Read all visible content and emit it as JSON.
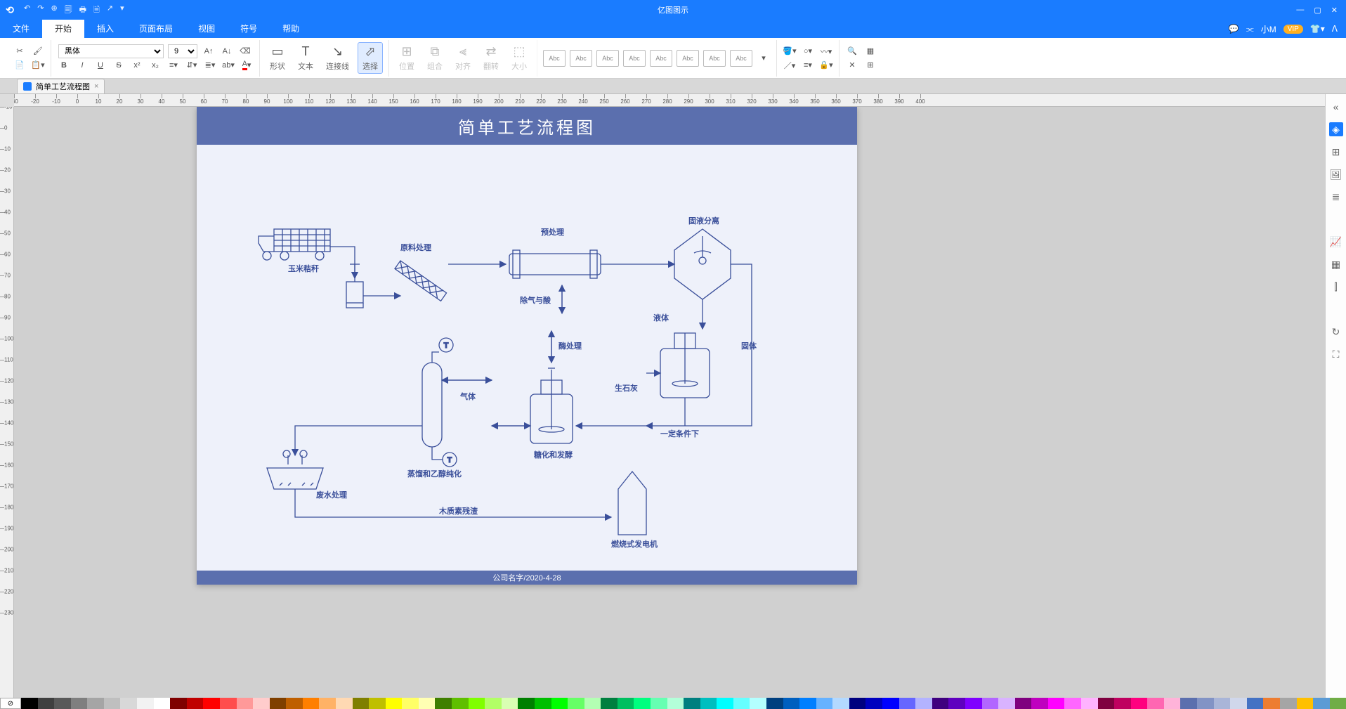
{
  "app": {
    "title": "亿图图示"
  },
  "qat": [
    "↶",
    "↷",
    "⊕",
    "🗐",
    "🖶",
    "🗎",
    "↗"
  ],
  "menu": {
    "tabs": [
      "文件",
      "开始",
      "插入",
      "页面布局",
      "视图",
      "符号",
      "帮助"
    ],
    "active": 1,
    "user": "小M",
    "vip": "VIP"
  },
  "ribbon": {
    "font_name": "黑体",
    "font_size": "9",
    "shape_label": "形状",
    "text_label": "文本",
    "connector_label": "连接线",
    "select_label": "选择",
    "position_label": "位置",
    "group_label": "组合",
    "align_label": "对齐",
    "flip_label": "翻转",
    "size_label": "大小",
    "style_swatches": [
      "Abc",
      "Abc",
      "Abc",
      "Abc",
      "Abc",
      "Abc",
      "Abc",
      "Abc"
    ]
  },
  "doctab": {
    "name": "简单工艺流程图",
    "close": "×"
  },
  "page": {
    "title": "简单工艺流程图",
    "footer": "公司名字/2020-4-28",
    "labels": {
      "corn": "玉米秸秆",
      "raw": "原料处理",
      "pretreat": "预处理",
      "solidliquid": "固液分离",
      "deacid": "除气与酸",
      "liquid": "液体",
      "solid": "固体",
      "enzyme": "酶处理",
      "lime": "生石灰",
      "gas": "气体",
      "ferment": "糖化和发酵",
      "condition": "一定条件下",
      "distill": "蒸馏和乙醇纯化",
      "lignin": "木质素残渣",
      "waste": "废水处理",
      "generator": "燃烧式发电机"
    }
  },
  "ruler": {
    "h_start": -30,
    "h_end": 400,
    "v_start": -10,
    "v_end": 230
  },
  "colorbar": [
    "#000000",
    "#3f3f3f",
    "#595959",
    "#7f7f7f",
    "#a5a5a5",
    "#bfbfbf",
    "#d8d8d8",
    "#f2f2f2",
    "#ffffff",
    "#7f0000",
    "#c00000",
    "#ff0000",
    "#ff4d4d",
    "#ff9999",
    "#ffcccc",
    "#7f3f00",
    "#bf5f00",
    "#ff7f00",
    "#ffb266",
    "#ffd9b3",
    "#7f7f00",
    "#bfbf00",
    "#ffff00",
    "#ffff66",
    "#ffffb3",
    "#3f7f00",
    "#5fbf00",
    "#7fff00",
    "#b2ff66",
    "#d9ffb3",
    "#007f00",
    "#00bf00",
    "#00ff00",
    "#66ff66",
    "#b3ffb3",
    "#007f3f",
    "#00bf5f",
    "#00ff7f",
    "#66ffb2",
    "#b3ffd9",
    "#007f7f",
    "#00bfbf",
    "#00ffff",
    "#66ffff",
    "#b3ffff",
    "#003f7f",
    "#005fbf",
    "#007fff",
    "#66b2ff",
    "#b3d9ff",
    "#00007f",
    "#0000bf",
    "#0000ff",
    "#6666ff",
    "#b3b3ff",
    "#3f007f",
    "#5f00bf",
    "#7f00ff",
    "#b266ff",
    "#d9b3ff",
    "#7f007f",
    "#bf00bf",
    "#ff00ff",
    "#ff66ff",
    "#ffb3ff",
    "#7f003f",
    "#bf005f",
    "#ff007f",
    "#ff66b2",
    "#ffb3d9",
    "#5b6fae",
    "#8293c5",
    "#a9b5d8",
    "#d0d7eb",
    "#4472c4",
    "#ed7d31",
    "#a5a5a5",
    "#ffc000",
    "#5b9bd5",
    "#70ad47"
  ]
}
